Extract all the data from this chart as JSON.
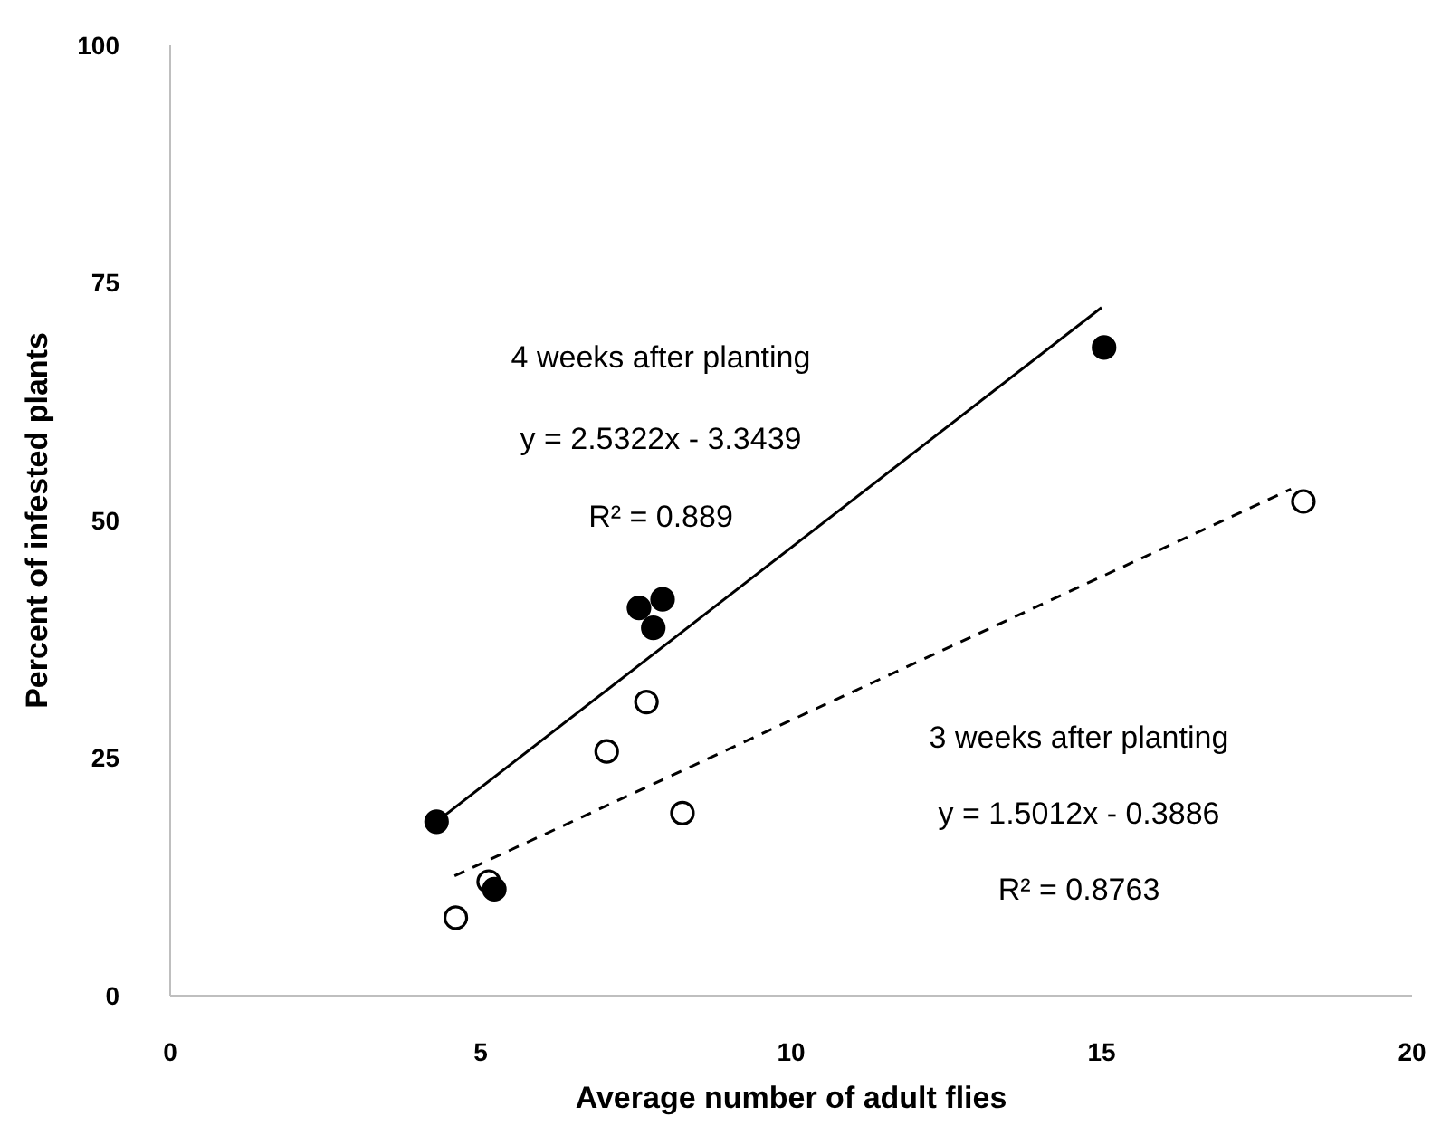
{
  "chart_data": {
    "type": "scatter",
    "xlabel": "Average number of adult flies",
    "ylabel": "Percent of infested plants",
    "xlim": [
      0,
      20
    ],
    "xticks": [
      0,
      5,
      10,
      15,
      20
    ],
    "ylim": [
      0,
      100
    ],
    "yticks": [
      0,
      25,
      50,
      75,
      100
    ],
    "grid": false,
    "legend": false,
    "series": [
      {
        "marker": "circle",
        "color": "#000000",
        "x": [
          4.29,
          7.55,
          7.93,
          7.78,
          5.22,
          15.04
        ],
        "values": [
          18.3,
          40.8,
          41.7,
          38.7,
          11.2,
          68.2
        ]
      },
      {
        "marker": "circle",
        "color": "#000000",
        "x": [
          4.6,
          5.13,
          7.03,
          7.67,
          8.25,
          18.25
        ],
        "values": [
          8.2,
          12.0,
          25.7,
          30.9,
          19.2,
          52.0
        ]
      },
      {
        "type": "line",
        "color": "#000000",
        "line_style": "solid",
        "x": [
          4.29,
          15.0
        ],
        "values": [
          18.3,
          72.4
        ]
      },
      {
        "type": "line",
        "color": "#000000",
        "line_style": "dashed",
        "x": [
          4.58,
          18.05
        ],
        "values": [
          12.6,
          53.3
        ]
      }
    ],
    "annotations": [
      "4 weeks after planting",
      "y = 2.5322x - 3.3439",
      "R² = 0.889",
      "3 weeks after planting",
      "y = 1.5012x - 0.3886",
      "R² = 0.8763"
    ]
  }
}
